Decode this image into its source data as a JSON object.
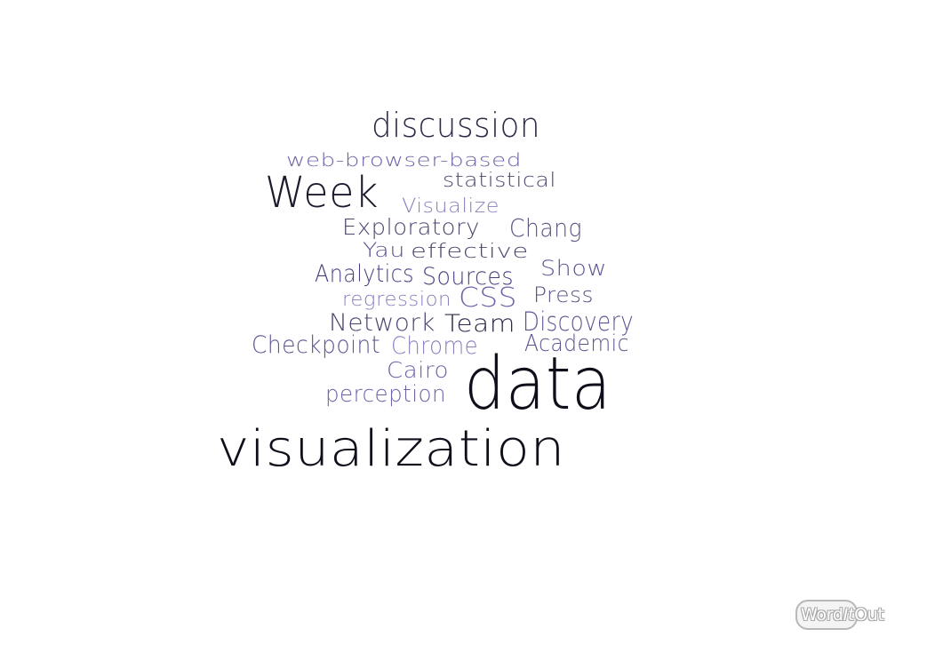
{
  "words": [
    {
      "text": "discussion",
      "color": "#2e2a48"
    },
    {
      "text": "web-browser-based",
      "color": "#6f62a8"
    },
    {
      "text": "statistical",
      "color": "#4d4670"
    },
    {
      "text": "Week",
      "color": "#1c1a2e"
    },
    {
      "text": "Visualize",
      "color": "#8b7fc0"
    },
    {
      "text": "Exploratory",
      "color": "#4d4670"
    },
    {
      "text": "Chang",
      "color": "#5a5282"
    },
    {
      "text": "Yau",
      "color": "#5d5290"
    },
    {
      "text": "effective",
      "color": "#4d4670"
    },
    {
      "text": "Show",
      "color": "#5d5290"
    },
    {
      "text": "Analytics",
      "color": "#4a4080"
    },
    {
      "text": "Sources",
      "color": "#4a4080"
    },
    {
      "text": "Press",
      "color": "#5a5282"
    },
    {
      "text": "regression",
      "color": "#8b7fc0"
    },
    {
      "text": "CSS",
      "color": "#6f62a8"
    },
    {
      "text": "Network",
      "color": "#4d4670"
    },
    {
      "text": "Team",
      "color": "#2e2a48"
    },
    {
      "text": "Discovery",
      "color": "#5d5290"
    },
    {
      "text": "Checkpoint",
      "color": "#5d5290"
    },
    {
      "text": "Chrome",
      "color": "#8b7fc0"
    },
    {
      "text": "Academic",
      "color": "#5d5290"
    },
    {
      "text": "Cairo",
      "color": "#6f62a8"
    },
    {
      "text": "perception",
      "color": "#6f62a8"
    },
    {
      "text": "data",
      "color": "#0f0e1a"
    },
    {
      "text": "visualization",
      "color": "#0f0e1a"
    }
  ],
  "logo": {
    "part1": "Word",
    "part2": "It",
    "part3": "Out"
  }
}
